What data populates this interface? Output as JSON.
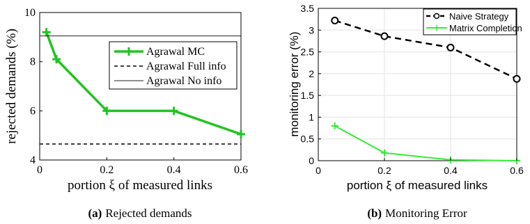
{
  "chart_data": [
    {
      "type": "line",
      "caption_letter": "(a)",
      "caption_text": "Rejected demands",
      "xlabel": "portion ξ of measured links",
      "ylabel": "rejected demands (%)",
      "xlim": [
        0,
        0.6
      ],
      "ylim": [
        4,
        10
      ],
      "xticks": [
        "0",
        "0.2",
        "0.4",
        "0.6"
      ],
      "xtick_values": [
        0,
        0.2,
        0.4,
        0.6
      ],
      "yticks": [
        "4",
        "6",
        "8",
        "10"
      ],
      "ytick_values": [
        4,
        6,
        8,
        10
      ],
      "grid": false,
      "legend_position": "top-right",
      "series": [
        {
          "name": "Agrawal MC",
          "x": [
            0.02,
            0.05,
            0.2,
            0.4,
            0.6
          ],
          "y": [
            9.2,
            8.1,
            6.0,
            6.0,
            5.05
          ],
          "color": "#22c322",
          "style": "solid-thick",
          "marker": "plus"
        },
        {
          "name": "Agrawal Full info",
          "x": [
            0.0,
            0.6
          ],
          "y": [
            4.65,
            4.65
          ],
          "color": "#000000",
          "style": "dashed",
          "marker": "none"
        },
        {
          "name": "Agrawal No info",
          "x": [
            0.0,
            0.6
          ],
          "y": [
            9.05,
            9.05
          ],
          "color": "#222222",
          "style": "solid-thin",
          "marker": "none"
        }
      ]
    },
    {
      "type": "line",
      "caption_letter": "(b)",
      "caption_text": "Monitoring Error",
      "xlabel": "portion ξ of measured links",
      "ylabel": "monitoring error (%)",
      "xlim": [
        0,
        0.6
      ],
      "ylim": [
        0,
        3.5
      ],
      "xticks": [
        "0",
        "0.2",
        "0.4",
        "0.6"
      ],
      "xtick_values": [
        0,
        0.2,
        0.4,
        0.6
      ],
      "yticks": [
        "0",
        "0.5",
        "1",
        "1.5",
        "2",
        "2.5",
        "3",
        "3.5"
      ],
      "ytick_values": [
        0,
        0.5,
        1,
        1.5,
        2,
        2.5,
        3,
        3.5
      ],
      "grid": true,
      "legend_position": "top-right",
      "series": [
        {
          "name": "Naive Strategy",
          "x": [
            0.05,
            0.2,
            0.4,
            0.6
          ],
          "y": [
            3.22,
            2.86,
            2.6,
            1.88
          ],
          "color": "#000000",
          "style": "dashed-thick",
          "marker": "circle"
        },
        {
          "name": "Matrix Completion",
          "x": [
            0.05,
            0.2,
            0.4,
            0.6
          ],
          "y": [
            0.8,
            0.18,
            0.02,
            0.0
          ],
          "color": "#33ee33",
          "style": "solid",
          "marker": "plus"
        }
      ]
    }
  ]
}
